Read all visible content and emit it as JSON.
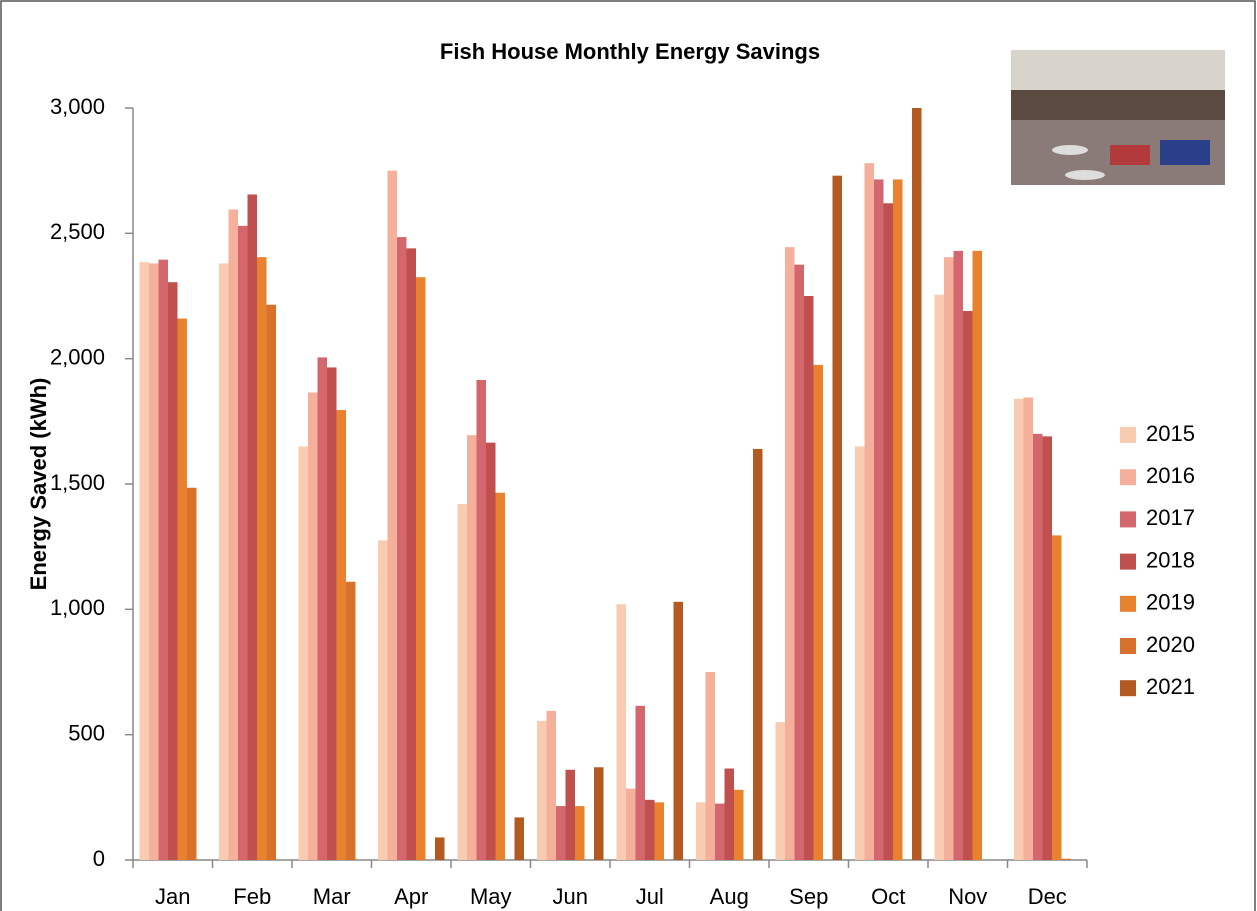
{
  "chart_data": {
    "type": "bar",
    "title": "Fish House Monthly Energy Savings",
    "y_label": "Energy Saved (kWh)",
    "categories": [
      "Jan",
      "Feb",
      "Mar",
      "Apr",
      "May",
      "Jun",
      "Jul",
      "Aug",
      "Sep",
      "Oct",
      "Nov",
      "Dec"
    ],
    "series": [
      {
        "name": "2015",
        "color": "#f9cbb0",
        "values": [
          2385,
          2380,
          1650,
          1275,
          1420,
          555,
          1020,
          230,
          550,
          1650,
          2255,
          1840
        ]
      },
      {
        "name": "2016",
        "color": "#f4b09a",
        "values": [
          2380,
          2595,
          1865,
          2750,
          1695,
          595,
          285,
          750,
          2445,
          2780,
          2405,
          1845
        ]
      },
      {
        "name": "2017",
        "color": "#d4676e",
        "values": [
          2395,
          2530,
          2005,
          2485,
          1915,
          215,
          615,
          225,
          2375,
          2715,
          2430,
          1700
        ]
      },
      {
        "name": "2018",
        "color": "#c0504d",
        "values": [
          2305,
          2655,
          1965,
          2440,
          1665,
          360,
          240,
          365,
          2250,
          2620,
          2190,
          1690
        ]
      },
      {
        "name": "2019",
        "color": "#e8822e",
        "values": [
          2160,
          2405,
          1795,
          2325,
          1465,
          215,
          230,
          280,
          1975,
          2715,
          2430,
          1295
        ]
      },
      {
        "name": "2020",
        "color": "#d9702b",
        "values": [
          1485,
          2215,
          1110,
          null,
          null,
          null,
          null,
          null,
          null,
          null,
          null,
          5
        ]
      },
      {
        "name": "2021",
        "color": "#b35a22",
        "values": [
          null,
          null,
          null,
          90,
          170,
          370,
          1030,
          1640,
          2730,
          3000,
          null,
          null
        ]
      }
    ],
    "ylim": [
      0,
      3000
    ],
    "yticks": [
      0,
      500,
      {
        "value": 1000,
        "label": "1,000"
      },
      {
        "value": 1500,
        "label": "1,500"
      },
      {
        "value": 2000,
        "label": "2,000"
      },
      {
        "value": 2500,
        "label": "2,500"
      },
      {
        "value": 3000,
        "label": "3,000"
      }
    ],
    "legend": "right"
  }
}
